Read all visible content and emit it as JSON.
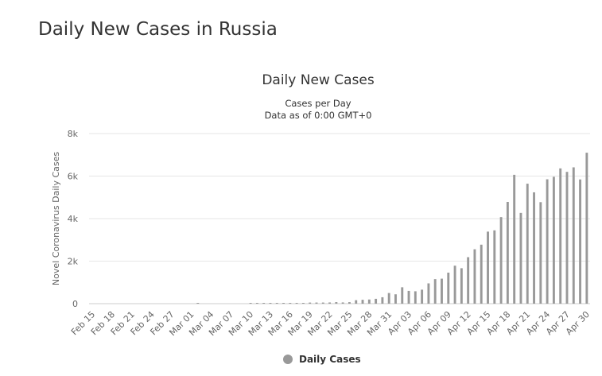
{
  "page": {
    "title": "Daily New Cases in Russia"
  },
  "colors": {
    "bar": "#999999",
    "grid": "#e6e6e6",
    "text": "#333333",
    "axis": "#666666"
  },
  "chart_data": {
    "type": "bar",
    "title": "Daily New Cases",
    "subtitle_lines": [
      "Cases per Day",
      "Data as of 0:00 GMT+0"
    ],
    "ylabel": "Novel Coronavirus Daily Cases",
    "xlabel": "",
    "ylim": [
      0,
      8000
    ],
    "y_ticks": [
      0,
      2000,
      4000,
      6000,
      8000
    ],
    "y_tick_labels": [
      "0",
      "2k",
      "4k",
      "6k",
      "8k"
    ],
    "grid": true,
    "legend_position": "bottom-center",
    "x_tick_labels": [
      "Feb 15",
      "Feb 18",
      "Feb 21",
      "Feb 24",
      "Feb 27",
      "Mar 01",
      "Mar 04",
      "Mar 07",
      "Mar 10",
      "Mar 13",
      "Mar 16",
      "Mar 19",
      "Mar 22",
      "Mar 25",
      "Mar 28",
      "Mar 31",
      "Apr 03",
      "Apr 06",
      "Apr 09",
      "Apr 12",
      "Apr 15",
      "Apr 18",
      "Apr 21",
      "Apr 24",
      "Apr 27",
      "Apr 30"
    ],
    "categories": [
      "Feb 15",
      "Feb 16",
      "Feb 17",
      "Feb 18",
      "Feb 19",
      "Feb 20",
      "Feb 21",
      "Feb 22",
      "Feb 23",
      "Feb 24",
      "Feb 25",
      "Feb 26",
      "Feb 27",
      "Feb 28",
      "Feb 29",
      "Mar 01",
      "Mar 02",
      "Mar 03",
      "Mar 04",
      "Mar 05",
      "Mar 06",
      "Mar 07",
      "Mar 08",
      "Mar 09",
      "Mar 10",
      "Mar 11",
      "Mar 12",
      "Mar 13",
      "Mar 14",
      "Mar 15",
      "Mar 16",
      "Mar 17",
      "Mar 18",
      "Mar 19",
      "Mar 20",
      "Mar 21",
      "Mar 22",
      "Mar 23",
      "Mar 24",
      "Mar 25",
      "Mar 26",
      "Mar 27",
      "Mar 28",
      "Mar 29",
      "Mar 30",
      "Mar 31",
      "Apr 01",
      "Apr 02",
      "Apr 03",
      "Apr 04",
      "Apr 05",
      "Apr 06",
      "Apr 07",
      "Apr 08",
      "Apr 09",
      "Apr 10",
      "Apr 11",
      "Apr 12",
      "Apr 13",
      "Apr 14",
      "Apr 15",
      "Apr 16",
      "Apr 17",
      "Apr 18",
      "Apr 19",
      "Apr 20",
      "Apr 21",
      "Apr 22",
      "Apr 23",
      "Apr 24",
      "Apr 25",
      "Apr 26",
      "Apr 27",
      "Apr 28",
      "Apr 29",
      "Apr 30"
    ],
    "series": [
      {
        "name": "Daily Cases",
        "values": [
          0,
          0,
          0,
          0,
          0,
          0,
          0,
          0,
          0,
          0,
          0,
          0,
          0,
          0,
          0,
          0,
          1,
          0,
          0,
          0,
          0,
          0,
          0,
          0,
          3,
          8,
          6,
          11,
          14,
          4,
          29,
          30,
          33,
          52,
          53,
          53,
          57,
          73,
          58,
          71,
          163,
          182,
          196,
          228,
          302,
          500,
          440,
          771,
          601,
          582,
          658,
          954,
          1154,
          1175,
          1459,
          1786,
          1667,
          2186,
          2558,
          2774,
          3388,
          3448,
          4070,
          4785,
          6060,
          4268,
          5642,
          5236,
          4774,
          5849,
          5966,
          6361,
          6198,
          6411,
          5841,
          7099
        ]
      }
    ]
  }
}
